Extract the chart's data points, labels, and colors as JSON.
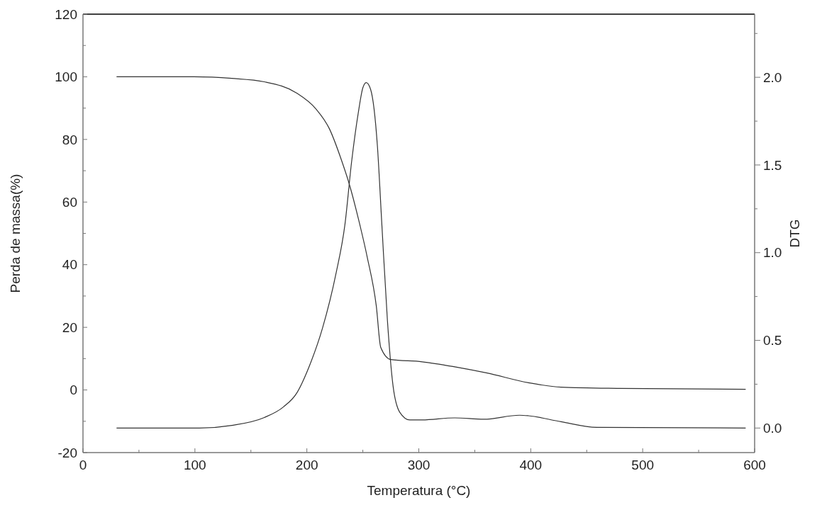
{
  "chart_data": {
    "type": "line",
    "xlabel": "Temperatura (°C)",
    "ylabel": "Perda de massa(%)",
    "y2label": "DTG",
    "xlim": [
      0,
      600
    ],
    "xticks": [
      0,
      {
        "value": 50,
        "label": null
      },
      100,
      {
        "value": 150,
        "label": null
      },
      200,
      {
        "value": 250,
        "label": null
      },
      300,
      {
        "value": 350,
        "label": null
      },
      400,
      {
        "value": 450,
        "label": null
      },
      500,
      {
        "value": 550,
        "label": null
      },
      600
    ],
    "ylim": [
      -20,
      120
    ],
    "yticks": [
      -20,
      {
        "value": -10,
        "label": null
      },
      0,
      {
        "value": 10,
        "label": null
      },
      20,
      {
        "value": 30,
        "label": null
      },
      40,
      {
        "value": 50,
        "label": null
      },
      60,
      {
        "value": 70,
        "label": null
      },
      80,
      {
        "value": 90,
        "label": null
      },
      100,
      {
        "value": 110,
        "label": null
      },
      120
    ],
    "y2lim": [
      -0.14,
      2.36
    ],
    "y2ticks": [
      {
        "value": 0,
        "label": "0.0"
      },
      {
        "value": 0.25,
        "label": null
      },
      {
        "value": 0.5,
        "label": "0.5"
      },
      {
        "value": 0.75,
        "label": null
      },
      {
        "value": 1,
        "label": "1.0"
      },
      {
        "value": 1.25,
        "label": null
      },
      {
        "value": 1.5,
        "label": "1.5"
      },
      {
        "value": 1.75,
        "label": null
      },
      {
        "value": 2,
        "label": "2.0"
      },
      {
        "value": 2.25,
        "label": null
      }
    ],
    "grid": false,
    "marker": "none",
    "line_style": "solid",
    "series": [
      {
        "color": "#333333",
        "x": [
          30,
          99,
          133,
          162,
          191,
          208,
          220,
          231,
          238,
          246,
          254,
          262,
          266,
          275,
          303,
          332,
          361,
          398,
          427,
          479,
          592
        ],
        "values": [
          100,
          100,
          99.5,
          98.4,
          94.8,
          89.8,
          83.5,
          73.3,
          65.6,
          54.7,
          42.3,
          26.9,
          13.6,
          9.7,
          9.0,
          7.4,
          5.4,
          2.3,
          0.9,
          0.5,
          0.2
        ]
      },
      {
        "color": "#333333",
        "axis": "y2",
        "x": [
          30,
          104,
          133,
          162,
          179,
          191,
          202,
          214,
          226,
          234,
          240,
          246,
          250,
          253,
          257,
          263,
          267,
          272,
          277,
          283,
          292,
          303,
          332,
          358,
          390,
          398,
          427,
          459,
          592
        ],
        "values": [
          0,
          0,
          0.015,
          0.06,
          0.12,
          0.2,
          0.35,
          0.57,
          0.88,
          1.16,
          1.52,
          1.8,
          1.94,
          1.97,
          1.93,
          1.61,
          1.16,
          0.61,
          0.24,
          0.09,
          0.046,
          0.046,
          0.058,
          0.05,
          0.073,
          0.07,
          0.036,
          0.004,
          0
        ]
      }
    ]
  }
}
